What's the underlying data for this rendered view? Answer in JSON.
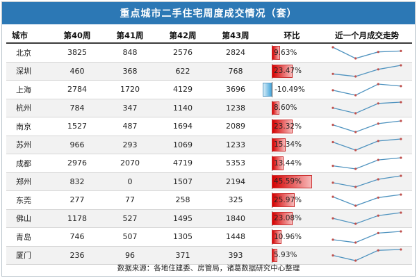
{
  "title": "重点城市二手住宅周度成交情况（套）",
  "headers": [
    "城市",
    "第40周",
    "第41周",
    "第42周",
    "第43周",
    "环比",
    "近一个月成交走势"
  ],
  "rows": [
    {
      "city": "北京",
      "w40": "3825",
      "w41": "848",
      "w42": "2576",
      "w43": "2824",
      "change_label": "9.63%",
      "change_value": 9.63
    },
    {
      "city": "深圳",
      "w40": "460",
      "w41": "368",
      "w42": "622",
      "w43": "768",
      "change_label": "23.47%",
      "change_value": 23.47
    },
    {
      "city": "上海",
      "w40": "2784",
      "w41": "1720",
      "w42": "4129",
      "w43": "3696",
      "change_label": "-10.49%",
      "change_value": -10.49
    },
    {
      "city": "杭州",
      "w40": "784",
      "w41": "347",
      "w42": "1140",
      "w43": "1238",
      "change_label": "8.60%",
      "change_value": 8.6
    },
    {
      "city": "南京",
      "w40": "1527",
      "w41": "487",
      "w42": "1694",
      "w43": "2089",
      "change_label": "23.32%",
      "change_value": 23.32
    },
    {
      "city": "苏州",
      "w40": "966",
      "w41": "293",
      "w42": "1069",
      "w43": "1233",
      "change_label": "15.34%",
      "change_value": 15.34
    },
    {
      "city": "成都",
      "w40": "2976",
      "w41": "2070",
      "w42": "4719",
      "w43": "5353",
      "change_label": "13.44%",
      "change_value": 13.44
    },
    {
      "city": "郑州",
      "w40": "832",
      "w41": "0",
      "w42": "1507",
      "w43": "2194",
      "change_label": "45.59%",
      "change_value": 45.59
    },
    {
      "city": "东莞",
      "w40": "277",
      "w41": "77",
      "w42": "258",
      "w43": "325",
      "change_label": "25.97%",
      "change_value": 25.97
    },
    {
      "city": "佛山",
      "w40": "1178",
      "w41": "527",
      "w42": "1495",
      "w43": "1840",
      "change_label": "23.08%",
      "change_value": 23.08
    },
    {
      "city": "青岛",
      "w40": "746",
      "w41": "507",
      "w42": "1305",
      "w43": "1448",
      "change_label": "10.96%",
      "change_value": 10.96
    },
    {
      "city": "厦门",
      "w40": "236",
      "w41": "96",
      "w42": "371",
      "w43": "393",
      "change_label": "5.93%",
      "change_value": 5.93
    }
  ],
  "source": "数据来源：各地住建委、房管局，诸葛数据研究中心整理",
  "colors": {
    "title_bg": "#2c78b5",
    "positive_bar": "#d40000",
    "negative_bar": "#4aa9dd",
    "sparkline": "#4f93bf",
    "sparkline_point": "#c0504d"
  }
}
